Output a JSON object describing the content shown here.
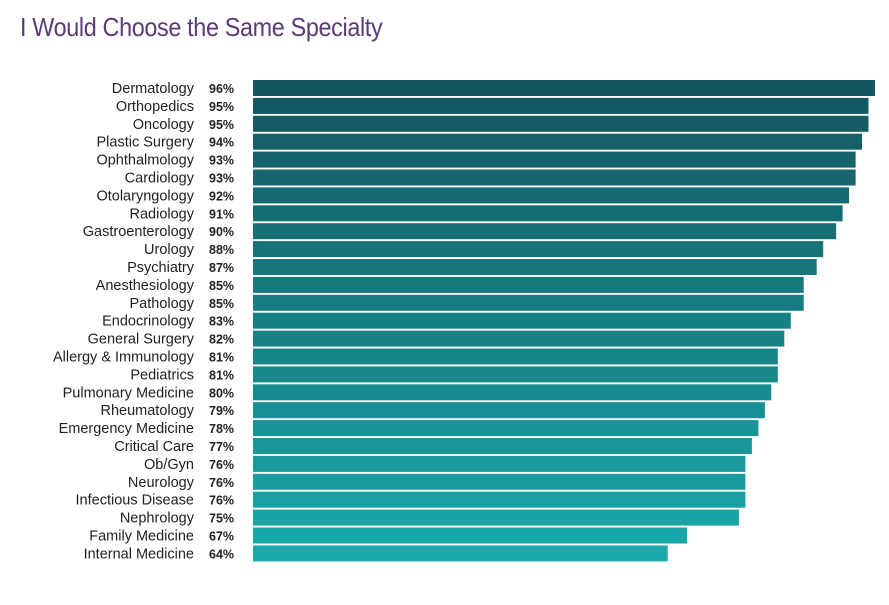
{
  "chart_data": {
    "type": "bar",
    "orientation": "horizontal",
    "title": "I Would Choose the Same Specialty",
    "xlabel": "",
    "ylabel": "",
    "xlim": [
      0,
      96
    ],
    "value_suffix": "%",
    "grid": false,
    "legend": "none",
    "colors": {
      "top": "#14565e",
      "bottom": "#19a9aa",
      "title": "#5b3b76"
    },
    "categories": [
      "Dermatology",
      "Orthopedics",
      "Oncology",
      "Plastic Surgery",
      "Ophthalmology",
      "Cardiology",
      "Otolaryngology",
      "Radiology",
      "Gastroenterology",
      "Urology",
      "Psychiatry",
      "Anesthesiology",
      "Pathology",
      "Endocrinology",
      "General Surgery",
      "Allergy & Immunology",
      "Pediatrics",
      "Pulmonary Medicine",
      "Rheumatology",
      "Emergency Medicine",
      "Critical Care",
      "Ob/Gyn",
      "Neurology",
      "Infectious Disease",
      "Nephrology",
      "Family Medicine",
      "Internal Medicine"
    ],
    "values": [
      96,
      95,
      95,
      94,
      93,
      93,
      92,
      91,
      90,
      88,
      87,
      85,
      85,
      83,
      82,
      81,
      81,
      80,
      79,
      78,
      77,
      76,
      76,
      76,
      75,
      67,
      64
    ],
    "value_labels": [
      "96%",
      "95%",
      "95%",
      "94%",
      "93%",
      "93%",
      "92%",
      "91%",
      "90%",
      "88%",
      "87%",
      "85%",
      "85%",
      "83%",
      "82%",
      "81%",
      "81%",
      "80%",
      "79%",
      "78%",
      "77%",
      "76%",
      "76%",
      "76%",
      "75%",
      "67%",
      "64%"
    ]
  }
}
